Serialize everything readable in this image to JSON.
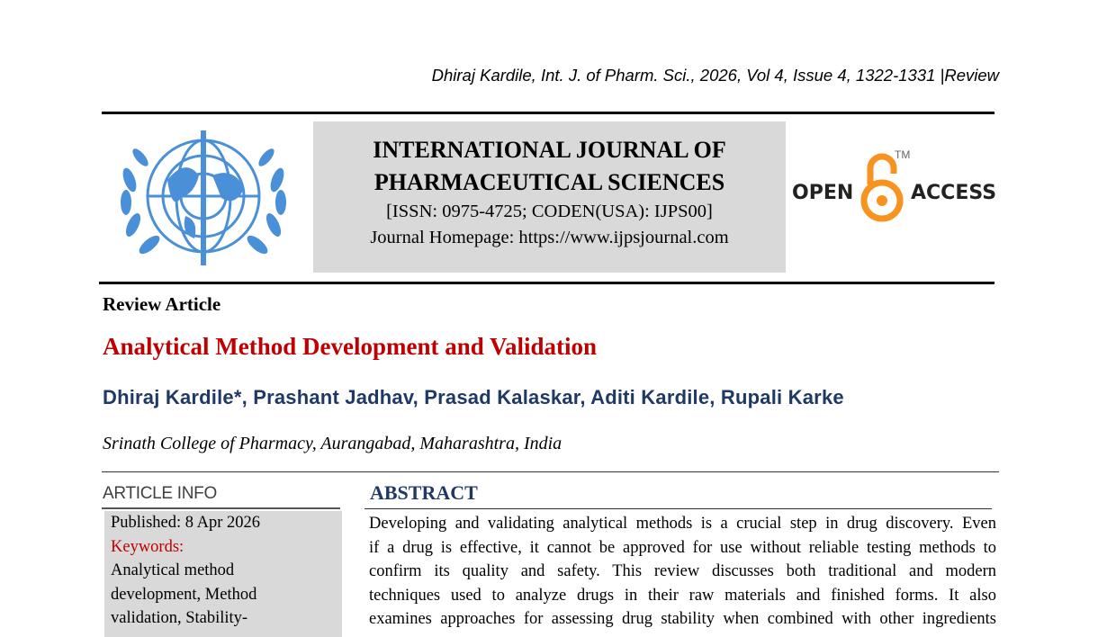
{
  "running_header": "Dhiraj Kardile, Int. J. of Pharm. Sci., 2026, Vol 4, Issue 4, 1322-1331 |Review",
  "journal": {
    "name_line1": "INTERNATIONAL JOURNAL OF",
    "name_line2": "PHARMACEUTICAL SCIENCES",
    "issn": "[ISSN: 0975-4725; CODEN(USA): IJPS00]",
    "homepage": "Journal Homepage: https://www.ijpsjournal.com"
  },
  "logos": {
    "left": "emblem-logo",
    "right": {
      "text_left": "OPEN",
      "text_right": "ACCESS",
      "tm": "TM",
      "color": "#f7931e"
    }
  },
  "article_type": "Review Article",
  "title": "Analytical Method Development and Validation",
  "authors": "Dhiraj Kardile*, Prashant Jadhav, Prasad Kalaskar, Aditi Kardile, Rupali Karke",
  "affiliation": "Srinath College of Pharmacy, Aurangabad, Maharashtra, India",
  "article_info": {
    "heading": "ARTICLE INFO",
    "published": "Published:  8 Apr 2026",
    "keywords_label": "Keywords:",
    "keywords": [
      "Analytical method",
      "development, Method",
      "validation, Stability-"
    ]
  },
  "abstract": {
    "heading": "ABSTRACT",
    "lines": [
      "Developing and validating analytical methods is a crucial step in drug discovery. Even",
      "if a drug is effective, it cannot be approved for use without reliable testing methods to",
      "confirm its quality and safety. This review discusses both traditional and modern",
      "techniques used to analyze drugs in their raw materials and finished forms. It also",
      "examines approaches for assessing drug stability when combined with other ingredients"
    ]
  },
  "colors": {
    "title": "#c00000",
    "navy": "#1f3864",
    "box": "#d9d9d9"
  }
}
